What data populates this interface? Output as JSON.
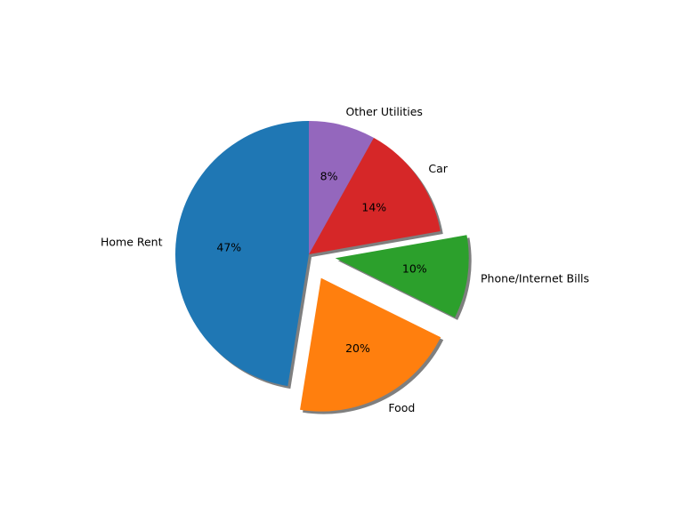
{
  "chart_data": {
    "type": "pie",
    "title": "",
    "slices": [
      {
        "label": "Home Rent",
        "value": 47,
        "pct_label": "47%",
        "color": "#1f77b4",
        "exploded": false
      },
      {
        "label": "Food",
        "value": 20,
        "pct_label": "20%",
        "color": "#ff7f0e",
        "exploded": true
      },
      {
        "label": "Phone/Internet Bills",
        "value": 10,
        "pct_label": "10%",
        "color": "#2ca02c",
        "exploded": true
      },
      {
        "label": "Car",
        "value": 14,
        "pct_label": "14%",
        "color": "#d62728",
        "exploded": false
      },
      {
        "label": "Other Utilities",
        "value": 8,
        "pct_label": "8%",
        "color": "#9467bd",
        "exploded": false
      }
    ],
    "start_angle": "top",
    "direction": "counterclockwise",
    "shadow": true
  }
}
